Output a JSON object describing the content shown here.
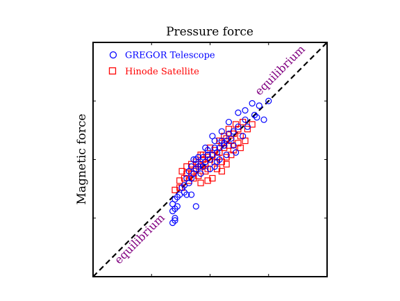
{
  "colors": {
    "gregor": "#0000ff",
    "hinode": "#ff0000",
    "equilibrium_text": "#800080",
    "equilibrium_line": "#000000",
    "frame": "#000000"
  },
  "chart_data": {
    "type": "scatter",
    "title": "",
    "xlabel": "Pressure force",
    "ylabel": "Magnetic force",
    "xlim": [
      0,
      1
    ],
    "ylim": [
      0,
      1
    ],
    "xticks": [
      0.25,
      0.5,
      0.75
    ],
    "yticks": [
      0.25,
      0.5,
      0.75
    ],
    "tick_labels_visible": false,
    "grid": false,
    "legend": {
      "position": "top-left",
      "entries": [
        {
          "label": "GREGOR Telescope",
          "marker": "circle",
          "color": "#0000ff"
        },
        {
          "label": "Hinode Satellite",
          "marker": "square",
          "color": "#ff0000"
        }
      ]
    },
    "reference_line": {
      "type": "diagonal",
      "style": "dashed",
      "label": "equilibrium",
      "from": [
        0,
        0
      ],
      "to": [
        1,
        1
      ]
    },
    "annotations": [
      {
        "text": "equilibrium",
        "x": 0.81,
        "y": 0.87,
        "rotation": -45
      },
      {
        "text": "equilibrium",
        "x": 0.21,
        "y": 0.15,
        "rotation": -45
      }
    ],
    "series": [
      {
        "name": "GREGOR Telescope",
        "marker": "circle",
        "color": "#0000ff",
        "points": [
          [
            0.68,
            0.74
          ],
          [
            0.71,
            0.73
          ],
          [
            0.75,
            0.75
          ],
          [
            0.69,
            0.69
          ],
          [
            0.7,
            0.68
          ],
          [
            0.73,
            0.67
          ],
          [
            0.65,
            0.67
          ],
          [
            0.66,
            0.64
          ],
          [
            0.62,
            0.64
          ],
          [
            0.6,
            0.62
          ],
          [
            0.58,
            0.61
          ],
          [
            0.59,
            0.59
          ],
          [
            0.57,
            0.58
          ],
          [
            0.55,
            0.58
          ],
          [
            0.56,
            0.56
          ],
          [
            0.54,
            0.55
          ],
          [
            0.52,
            0.55
          ],
          [
            0.53,
            0.53
          ],
          [
            0.51,
            0.52
          ],
          [
            0.49,
            0.52
          ],
          [
            0.5,
            0.5
          ],
          [
            0.48,
            0.49
          ],
          [
            0.47,
            0.47
          ],
          [
            0.45,
            0.47
          ],
          [
            0.44,
            0.46
          ],
          [
            0.46,
            0.44
          ],
          [
            0.43,
            0.44
          ],
          [
            0.42,
            0.42
          ],
          [
            0.4,
            0.42
          ],
          [
            0.41,
            0.4
          ],
          [
            0.39,
            0.39
          ],
          [
            0.38,
            0.38
          ],
          [
            0.39,
            0.36
          ],
          [
            0.37,
            0.35
          ],
          [
            0.36,
            0.34
          ],
          [
            0.35,
            0.33
          ],
          [
            0.34,
            0.31
          ],
          [
            0.36,
            0.3
          ],
          [
            0.35,
            0.29
          ],
          [
            0.34,
            0.28
          ],
          [
            0.35,
            0.25
          ],
          [
            0.34,
            0.23
          ],
          [
            0.35,
            0.24
          ],
          [
            0.44,
            0.3
          ],
          [
            0.4,
            0.35
          ],
          [
            0.42,
            0.35
          ],
          [
            0.55,
            0.62
          ],
          [
            0.58,
            0.66
          ],
          [
            0.51,
            0.6
          ],
          [
            0.65,
            0.71
          ],
          [
            0.62,
            0.7
          ],
          [
            0.64,
            0.6
          ],
          [
            0.6,
            0.56
          ],
          [
            0.48,
            0.55
          ],
          [
            0.44,
            0.5
          ],
          [
            0.46,
            0.48
          ],
          [
            0.57,
            0.52
          ],
          [
            0.61,
            0.53
          ],
          [
            0.53,
            0.49
          ],
          [
            0.5,
            0.46
          ],
          [
            0.56,
            0.57
          ],
          [
            0.47,
            0.51
          ],
          [
            0.43,
            0.5
          ],
          [
            0.52,
            0.58
          ],
          [
            0.54,
            0.5
          ],
          [
            0.49,
            0.54
          ],
          [
            0.42,
            0.47
          ],
          [
            0.41,
            0.45
          ],
          [
            0.45,
            0.51
          ],
          [
            0.52,
            0.47
          ]
        ]
      },
      {
        "name": "Hinode Satellite",
        "marker": "square",
        "color": "#ff0000",
        "points": [
          [
            0.66,
            0.63
          ],
          [
            0.68,
            0.65
          ],
          [
            0.64,
            0.66
          ],
          [
            0.62,
            0.63
          ],
          [
            0.6,
            0.61
          ],
          [
            0.63,
            0.6
          ],
          [
            0.59,
            0.58
          ],
          [
            0.57,
            0.59
          ],
          [
            0.58,
            0.56
          ],
          [
            0.56,
            0.55
          ],
          [
            0.55,
            0.57
          ],
          [
            0.54,
            0.53
          ],
          [
            0.52,
            0.54
          ],
          [
            0.53,
            0.51
          ],
          [
            0.51,
            0.52
          ],
          [
            0.5,
            0.5
          ],
          [
            0.49,
            0.51
          ],
          [
            0.48,
            0.48
          ],
          [
            0.47,
            0.5
          ],
          [
            0.46,
            0.47
          ],
          [
            0.45,
            0.48
          ],
          [
            0.44,
            0.46
          ],
          [
            0.43,
            0.45
          ],
          [
            0.42,
            0.44
          ],
          [
            0.4,
            0.44
          ],
          [
            0.41,
            0.41
          ],
          [
            0.39,
            0.42
          ],
          [
            0.38,
            0.45
          ],
          [
            0.37,
            0.41
          ],
          [
            0.38,
            0.38
          ],
          [
            0.37,
            0.38
          ],
          [
            0.46,
            0.4
          ],
          [
            0.49,
            0.41
          ],
          [
            0.51,
            0.42
          ],
          [
            0.48,
            0.45
          ],
          [
            0.53,
            0.46
          ],
          [
            0.55,
            0.49
          ],
          [
            0.57,
            0.51
          ],
          [
            0.6,
            0.54
          ],
          [
            0.62,
            0.57
          ],
          [
            0.65,
            0.58
          ],
          [
            0.61,
            0.65
          ],
          [
            0.58,
            0.63
          ],
          [
            0.56,
            0.6
          ],
          [
            0.54,
            0.58
          ],
          [
            0.5,
            0.55
          ],
          [
            0.47,
            0.52
          ],
          [
            0.44,
            0.49
          ],
          [
            0.43,
            0.42
          ],
          [
            0.45,
            0.43
          ],
          [
            0.52,
            0.49
          ],
          [
            0.59,
            0.52
          ],
          [
            0.63,
            0.55
          ],
          [
            0.57,
            0.48
          ],
          [
            0.55,
            0.45
          ],
          [
            0.49,
            0.46
          ],
          [
            0.46,
            0.52
          ],
          [
            0.42,
            0.48
          ],
          [
            0.4,
            0.47
          ],
          [
            0.35,
            0.37
          ]
        ]
      }
    ]
  }
}
